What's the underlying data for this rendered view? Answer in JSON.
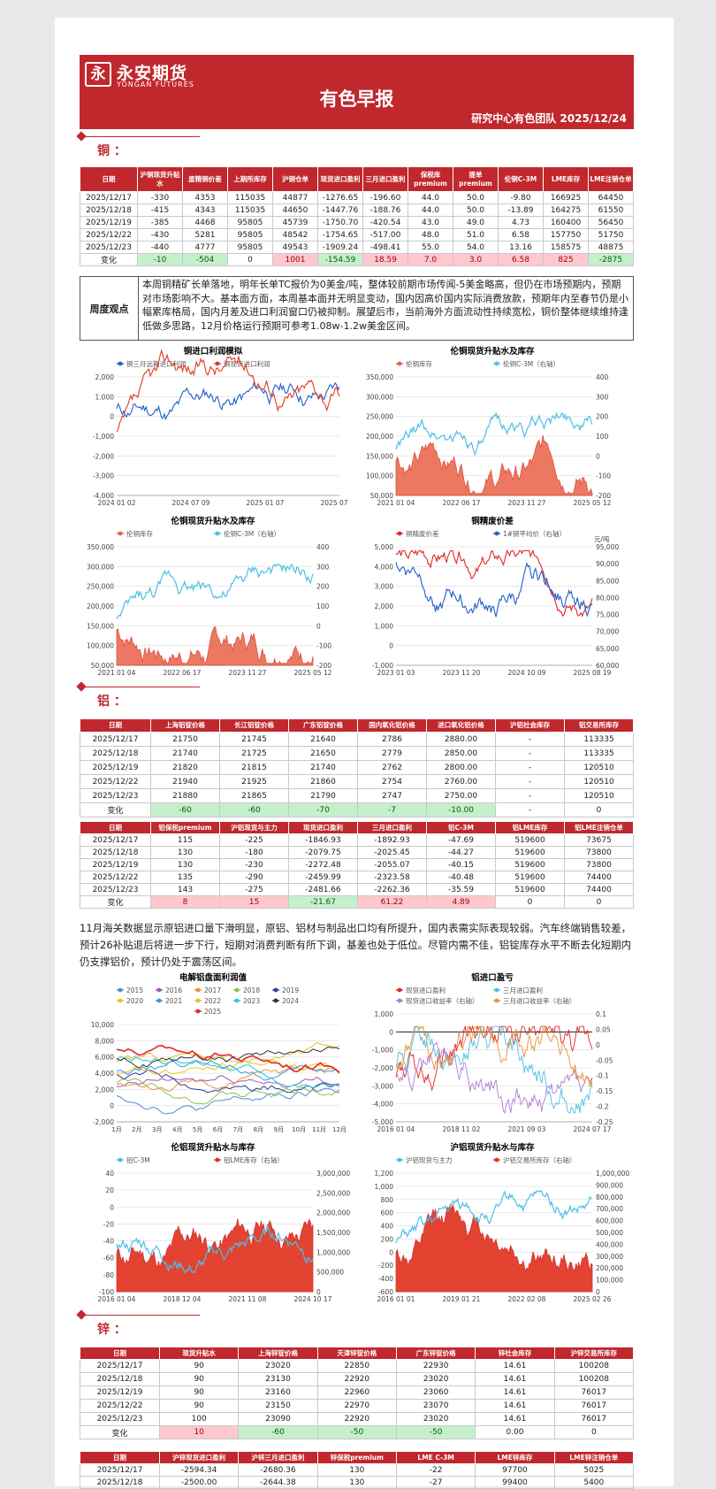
{
  "header": {
    "logo_mark": "永",
    "brand_cn": "永安期货",
    "brand_en": "YONGAN FUTURES",
    "title": "有色早报",
    "team_date": "研究中心有色团队  2025/12/24"
  },
  "copper": {
    "section_title": "铜 ：",
    "table": {
      "headers": [
        "日期",
        "沪铜现货升贴水",
        "废精铜价差",
        "上期所库存",
        "沪铜仓单",
        "现货进口盈利",
        "三月进口盈利",
        "保税库premium",
        "提单premium",
        "伦铜C-3M",
        "LME库存",
        "LME注销仓单"
      ],
      "rows": [
        [
          "2025/12/17",
          "-330",
          "4353",
          "115035",
          "44877",
          "-1276.65",
          "-196.60",
          "44.0",
          "50.0",
          "-9.80",
          "166925",
          "64450"
        ],
        [
          "2025/12/18",
          "-415",
          "4343",
          "115035",
          "44650",
          "-1447.76",
          "-188.76",
          "44.0",
          "50.0",
          "-13.89",
          "164275",
          "61550"
        ],
        [
          "2025/12/19",
          "-385",
          "4468",
          "95805",
          "45739",
          "-1750.70",
          "-420.54",
          "43.0",
          "49.0",
          "4.73",
          "160400",
          "56450"
        ],
        [
          "2025/12/22",
          "-430",
          "5281",
          "95805",
          "48542",
          "-1754.65",
          "-517.00",
          "48.0",
          "51.0",
          "6.58",
          "157750",
          "51750"
        ],
        [
          "2025/12/23",
          "-440",
          "4777",
          "95805",
          "49543",
          "-1909.24",
          "-498.41",
          "55.0",
          "54.0",
          "13.16",
          "158575",
          "48875"
        ]
      ],
      "change": [
        "变化",
        "-10",
        "-504",
        "0",
        "1001",
        "-154.59",
        "18.59",
        "7.0",
        "3.0",
        "6.58",
        "825",
        "-2875"
      ]
    },
    "view_label": "周度观点",
    "view_text": "本周铜精矿长单落地，明年长单TC报价为0美金/吨，整体较前期市场传闻-5美金略高，但仍在市场预期内，预期对市场影响不大。基本面方面，本周基本面并无明显变动，国内因高价国内实际消费放款，预期年内至春节仍是小幅累库格局，国内月差及进口利润窗口仍被抑制。展望后市，当前海外方面流动性持续宽松，铜价整体继续维持逢低做多思路，12月价格运行预期可参考1.08w-1.2w美金区间。",
    "charts": [
      {
        "title": "铜进口利润模拟",
        "legend": [
          "铜三月远期进口利润",
          "铜现货进口利润"
        ],
        "y_ticks": [
          "2,000",
          "1,000",
          "0",
          "-1,000",
          "-2,000",
          "-3,000",
          "-4,000"
        ],
        "x_ticks": [
          "2024 01 02",
          "2024 07 09",
          "2025 01 07",
          "2025 07 11"
        ],
        "colors": [
          "#1f5fc8",
          "#e03c20"
        ]
      },
      {
        "title": "伦铜现货升贴水及库存",
        "legend": [
          "伦铜库存",
          "伦铜C-3M（右轴）"
        ],
        "y_ticks": [
          "350,000",
          "300,000",
          "250,000",
          "200,000",
          "150,000",
          "100,000",
          "50,000"
        ],
        "y2_ticks": [
          "400",
          "300",
          "200",
          "100",
          "0",
          "-100",
          "-200"
        ],
        "x_ticks": [
          "2021 01 04",
          "2022 06 17",
          "2023 11 27",
          "2025 05 12"
        ],
        "colors": [
          "#e8604c",
          "#4bbfe6"
        ]
      },
      {
        "title": "伦铜现货升贴水及库存",
        "legend": [
          "伦铜库存",
          "伦铜C-3M（右轴）"
        ],
        "y_ticks": [
          "350,000",
          "300,000",
          "250,000",
          "200,000",
          "150,000",
          "100,000",
          "50,000"
        ],
        "y2_ticks": [
          "400",
          "300",
          "200",
          "100",
          "0",
          "-100",
          "-200"
        ],
        "x_ticks": [
          "2021 01 04",
          "2022 06 17",
          "2023 11 27",
          "2025 05 12"
        ],
        "colors": [
          "#e8604c",
          "#4bbfe6"
        ]
      },
      {
        "title": "铜精废价差",
        "unit": "元/吨",
        "legend": [
          "铜精废价差",
          "1#铜平均价（右轴）"
        ],
        "y_ticks": [
          "5,000",
          "4,000",
          "3,000",
          "2,000",
          "1,000",
          "0",
          "-1,000"
        ],
        "y2_ticks": [
          "95,000",
          "90,000",
          "85,000",
          "80,000",
          "75,000",
          "70,000",
          "65,000",
          "60,000"
        ],
        "x_ticks": [
          "2023 01 03",
          "2023 11 20",
          "2024 10 09",
          "2025 08 19"
        ],
        "colors": [
          "#e02828",
          "#1f5fc8"
        ]
      }
    ]
  },
  "aluminum": {
    "section_title": "铝 ：",
    "table1": {
      "headers": [
        "日期",
        "上海铝锭价格",
        "长江铝锭价格",
        "广东铝锭价格",
        "国内氧化铝价格",
        "进口氧化铝价格",
        "沪铝社会库存",
        "铝交易所库存"
      ],
      "rows": [
        [
          "2025/12/17",
          "21750",
          "21745",
          "21640",
          "2786",
          "2880.00",
          "-",
          "113335"
        ],
        [
          "2025/12/18",
          "21740",
          "21725",
          "21650",
          "2779",
          "2850.00",
          "-",
          "113335"
        ],
        [
          "2025/12/19",
          "21820",
          "21815",
          "21740",
          "2762",
          "2800.00",
          "-",
          "120510"
        ],
        [
          "2025/12/22",
          "21940",
          "21925",
          "21860",
          "2754",
          "2760.00",
          "-",
          "120510"
        ],
        [
          "2025/12/23",
          "21880",
          "21865",
          "21790",
          "2747",
          "2750.00",
          "-",
          "120510"
        ]
      ],
      "change": [
        "变化",
        "-60",
        "-60",
        "-70",
        "-7",
        "-10.00",
        "-",
        "0"
      ]
    },
    "table2": {
      "headers": [
        "日期",
        "铝保税premium",
        "沪铝现货与主力",
        "现货进口盈利",
        "三月进口盈利",
        "铝C-3M",
        "铝LME库存",
        "铝LME注销仓单"
      ],
      "rows": [
        [
          "2025/12/17",
          "115",
          "-225",
          "-1846.93",
          "-1892.93",
          "-47.69",
          "519600",
          "73675"
        ],
        [
          "2025/12/18",
          "130",
          "-180",
          "-2079.75",
          "-2025.45",
          "-44.27",
          "519600",
          "73800"
        ],
        [
          "2025/12/19",
          "130",
          "-230",
          "-2272.48",
          "-2055.07",
          "-40.15",
          "519600",
          "73800"
        ],
        [
          "2025/12/22",
          "135",
          "-290",
          "-2459.99",
          "-2323.58",
          "-40.48",
          "519600",
          "74400"
        ],
        [
          "2025/12/23",
          "143",
          "-275",
          "-2481.66",
          "-2262.36",
          "-35.59",
          "519600",
          "74400"
        ]
      ],
      "change": [
        "变化",
        "8",
        "15",
        "-21.67",
        "61.22",
        "4.89",
        "0",
        "0"
      ]
    },
    "view_text": "11月海关数据显示原铝进口量下滑明显，原铝、铝材与制品出口均有所提升，国内表需实际表现较弱。汽车终端销售较差，预计26补贴退后将进一步下行，短期对消费判断有所下调，基差也处于低位。尽管内需不佳，铝锭库存水平不断去化短期内仍支撑铝价，预计仍处于震荡区间。",
    "charts": [
      {
        "title": "电解铝盘面利润值",
        "legend": [
          "2015",
          "2016",
          "2017",
          "2018",
          "2019",
          "2020",
          "2021",
          "2022",
          "2023",
          "2024",
          "2025"
        ],
        "y_ticks": [
          "10,000",
          "8,000",
          "6,000",
          "4,000",
          "2,000",
          "0",
          "-2,000"
        ],
        "x_ticks": [
          "1月",
          "2月",
          "3月",
          "4月",
          "5月",
          "6月",
          "7月",
          "8月",
          "9月",
          "10月",
          "11月",
          "12月"
        ],
        "colors": [
          "#4a8fd4",
          "#9b59b6",
          "#e8903c",
          "#8bc34a",
          "#2c3e99",
          "#f1c40f",
          "#3498db",
          "#e0c030",
          "#26c6da",
          "#333333",
          "#e02828"
        ]
      },
      {
        "title": "铝进口盈亏",
        "legend": [
          "现货进口盈利",
          "三月进口盈利",
          "现货进口收益率（右轴）",
          "三月进口收益率（右轴）"
        ],
        "y_ticks": [
          "1,000",
          "0",
          "-1,000",
          "-2,000",
          "-3,000",
          "-4,000",
          "-5,000"
        ],
        "y2_ticks": [
          "0.1",
          "0.05",
          "0",
          "-0.05",
          "-0.1",
          "-0.15",
          "-0.2",
          "-0.25"
        ],
        "x_ticks": [
          "2016 01 04",
          "2018 11 02",
          "2021 09 03",
          "2024 07 17"
        ],
        "colors": [
          "#e02828",
          "#4bbfe6",
          "#b07cd6",
          "#e8903c"
        ]
      },
      {
        "title": "伦铝现货升贴水与库存",
        "legend": [
          "铝C-3M",
          "铝LME库存（右轴）"
        ],
        "y_ticks": [
          "40",
          "20",
          "0",
          "-20",
          "-40",
          "-60",
          "-80",
          "-100"
        ],
        "y2_ticks": [
          "3,000,000",
          "2,500,000",
          "2,000,000",
          "1,500,000",
          "1,000,000",
          "500,000",
          "0"
        ],
        "x_ticks": [
          "2016 01 04",
          "2018 12 04",
          "2021 11 08",
          "2024 10 17"
        ],
        "colors": [
          "#4bbfe6",
          "#e02f1a"
        ]
      },
      {
        "title": "沪铝现货升贴水与库存",
        "legend": [
          "沪铝现货与主力",
          "沪铝交易所库存（右轴）"
        ],
        "y_ticks": [
          "1,200",
          "1,000",
          "800",
          "600",
          "400",
          "200",
          "0",
          "-200",
          "-400",
          "-600"
        ],
        "y2_ticks": [
          "1,000,000",
          "900,000",
          "800,000",
          "700,000",
          "600,000",
          "500,000",
          "400,000",
          "300,000",
          "200,000",
          "100,000",
          "0"
        ],
        "x_ticks": [
          "2016 01 01",
          "2019 01 21",
          "2022 02 08",
          "2025 02 26"
        ],
        "colors": [
          "#4bbfe6",
          "#e02f1a"
        ]
      }
    ]
  },
  "zinc": {
    "section_title": "锌 ：",
    "table1": {
      "headers": [
        "日期",
        "现货升贴水",
        "上海锌锭价格",
        "天津锌锭价格",
        "广东锌锭价格",
        "锌社会库存",
        "沪锌交易所库存"
      ],
      "rows": [
        [
          "2025/12/17",
          "90",
          "23020",
          "22850",
          "22930",
          "14.61",
          "100208"
        ],
        [
          "2025/12/18",
          "90",
          "23130",
          "22920",
          "23020",
          "14.61",
          "100208"
        ],
        [
          "2025/12/19",
          "90",
          "23160",
          "22960",
          "23060",
          "14.61",
          "76017"
        ],
        [
          "2025/12/22",
          "90",
          "23150",
          "22970",
          "23070",
          "14.61",
          "76017"
        ],
        [
          "2025/12/23",
          "100",
          "23090",
          "22920",
          "23020",
          "14.61",
          "76017"
        ]
      ],
      "change": [
        "变化",
        "10",
        "-60",
        "-50",
        "-50",
        "0.00",
        "0"
      ]
    },
    "table2": {
      "headers": [
        "日期",
        "沪锌现货进口盈利",
        "沪锌三月进口盈利",
        "锌保税premium",
        "LME C-3M",
        "LME锌库存",
        "LME锌注销仓单"
      ],
      "rows": [
        [
          "2025/12/17",
          "-2594.34",
          "-2680.36",
          "130",
          "-22",
          "97700",
          "5025"
        ],
        [
          "2025/12/18",
          "-2500.00",
          "-2644.38",
          "130",
          "-27",
          "99400",
          "5400"
        ]
      ]
    }
  }
}
